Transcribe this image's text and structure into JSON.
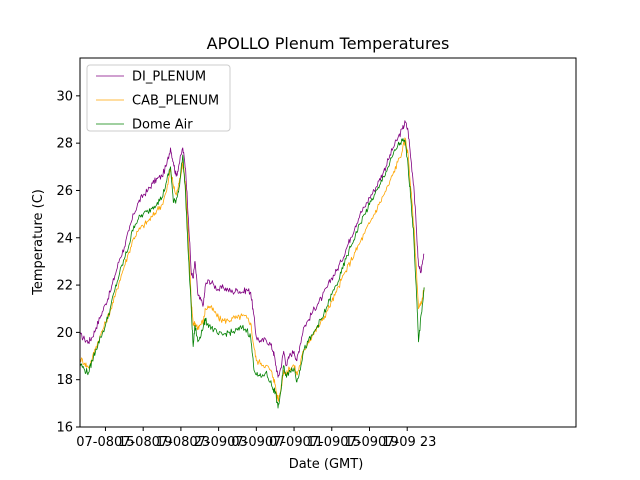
{
  "chart_data": {
    "type": "line",
    "title": "APOLLO Plenum Temperatures",
    "xlabel": "Date (GMT)",
    "ylabel": "Temperature (C)",
    "xlim": [
      -2.7,
      49.9
    ],
    "ylim": [
      16,
      31.6
    ],
    "x_unit": "hours since 07-08 15:00 GMT",
    "yticks": [
      16,
      18,
      20,
      22,
      24,
      26,
      28,
      30
    ],
    "xticks": [
      {
        "value": 0,
        "label": "07-08 15"
      },
      {
        "value": 4,
        "label": "07-08 19"
      },
      {
        "value": 8,
        "label": "07-08 23"
      },
      {
        "value": 12,
        "label": "07-09 03"
      },
      {
        "value": 16,
        "label": "07-09 07"
      },
      {
        "value": 20,
        "label": "07-09 11"
      },
      {
        "value": 24,
        "label": "07-09 15"
      },
      {
        "value": 28,
        "label": "07-09 19"
      },
      {
        "value": 32,
        "label": "07-09 23"
      }
    ],
    "legend_position": "top-left",
    "series": [
      {
        "name": "DI_PLENUM",
        "color": "#800080",
        "points": [
          [
            -2.7,
            19.9
          ],
          [
            -2.2,
            19.7
          ],
          [
            -1.8,
            19.6
          ],
          [
            -1.4,
            19.8
          ],
          [
            -1,
            20.2
          ],
          [
            -0.5,
            20.7
          ],
          [
            0,
            21.2
          ],
          [
            0.5,
            21.7
          ],
          [
            1,
            22.4
          ],
          [
            1.5,
            23.1
          ],
          [
            2,
            23.6
          ],
          [
            2.5,
            24.3
          ],
          [
            3,
            25
          ],
          [
            3.5,
            25.5
          ],
          [
            4,
            25.8
          ],
          [
            4.5,
            26
          ],
          [
            5,
            26.3
          ],
          [
            5.5,
            26.5
          ],
          [
            6,
            26.6
          ],
          [
            6.5,
            27.1
          ],
          [
            6.9,
            27.8
          ],
          [
            7.2,
            27.2
          ],
          [
            7.5,
            26.6
          ],
          [
            7.8,
            27.1
          ],
          [
            8.2,
            27.8
          ],
          [
            8.5,
            26.9
          ],
          [
            8.8,
            24.8
          ],
          [
            9.1,
            22.5
          ],
          [
            9.3,
            22.3
          ],
          [
            9.5,
            23
          ],
          [
            9.8,
            21.6
          ],
          [
            10,
            21.4
          ],
          [
            10.4,
            21.2
          ],
          [
            10.6,
            22
          ],
          [
            11,
            22.2
          ],
          [
            11.5,
            22
          ],
          [
            12,
            21.8
          ],
          [
            12.5,
            21.9
          ],
          [
            13,
            21.8
          ],
          [
            13.5,
            21.7
          ],
          [
            14,
            21.8
          ],
          [
            14.5,
            21.7
          ],
          [
            15,
            21.8
          ],
          [
            15.4,
            21.7
          ],
          [
            15.7,
            20.8
          ],
          [
            16,
            19.8
          ],
          [
            16.5,
            19.6
          ],
          [
            17,
            19.7
          ],
          [
            17.5,
            19.5
          ],
          [
            17.8,
            19.2
          ],
          [
            18,
            18.8
          ],
          [
            18.3,
            18.1
          ],
          [
            18.6,
            18.5
          ],
          [
            18.9,
            19.2
          ],
          [
            19.2,
            18.6
          ],
          [
            19.5,
            19
          ],
          [
            20,
            19.2
          ],
          [
            20.3,
            18.8
          ],
          [
            20.6,
            19.4
          ],
          [
            21,
            20.2
          ],
          [
            21.5,
            20.5
          ],
          [
            22,
            20.9
          ],
          [
            22.5,
            21.2
          ],
          [
            23,
            21.5
          ],
          [
            23.5,
            21.9
          ],
          [
            24,
            22.3
          ],
          [
            24.5,
            22.6
          ],
          [
            25,
            23
          ],
          [
            25.5,
            23.5
          ],
          [
            26,
            24
          ],
          [
            26.5,
            24.5
          ],
          [
            27,
            25
          ],
          [
            27.5,
            25.3
          ],
          [
            28,
            25.7
          ],
          [
            28.5,
            26
          ],
          [
            29,
            26.4
          ],
          [
            29.5,
            26.8
          ],
          [
            30,
            27.3
          ],
          [
            30.5,
            27.8
          ],
          [
            31,
            28.2
          ],
          [
            31.5,
            28.6
          ],
          [
            31.8,
            28.9
          ],
          [
            32.1,
            28.5
          ],
          [
            32.4,
            27.3
          ],
          [
            32.7,
            26.2
          ],
          [
            33,
            24.2
          ],
          [
            33.2,
            22.8
          ],
          [
            33.5,
            22.6
          ],
          [
            33.8,
            23.3
          ]
        ]
      },
      {
        "name": "CAB_PLENUM",
        "color": "#FFA500",
        "points": [
          [
            -2.7,
            18.9
          ],
          [
            -2.2,
            18.7
          ],
          [
            -1.8,
            18.5
          ],
          [
            -1.4,
            18.9
          ],
          [
            -1,
            19.4
          ],
          [
            -0.5,
            19.9
          ],
          [
            0,
            20.4
          ],
          [
            0.5,
            20.9
          ],
          [
            1,
            21.5
          ],
          [
            1.5,
            22.2
          ],
          [
            2,
            22.8
          ],
          [
            2.5,
            23.4
          ],
          [
            3,
            24
          ],
          [
            3.5,
            24.3
          ],
          [
            4,
            24.5
          ],
          [
            4.5,
            24.7
          ],
          [
            5,
            24.9
          ],
          [
            5.5,
            25.2
          ],
          [
            6,
            25.4
          ],
          [
            6.5,
            26
          ],
          [
            6.9,
            26.9
          ],
          [
            7.2,
            26.2
          ],
          [
            7.5,
            25.8
          ],
          [
            7.8,
            26.3
          ],
          [
            8.2,
            27.2
          ],
          [
            8.5,
            26.2
          ],
          [
            8.8,
            24
          ],
          [
            9.1,
            21.3
          ],
          [
            9.3,
            20.3
          ],
          [
            9.5,
            20.4
          ],
          [
            9.8,
            20.2
          ],
          [
            10,
            20.3
          ],
          [
            10.4,
            20.5
          ],
          [
            10.6,
            21
          ],
          [
            11,
            21.1
          ],
          [
            11.5,
            20.9
          ],
          [
            12,
            20.6
          ],
          [
            12.5,
            20.5
          ],
          [
            13,
            20.5
          ],
          [
            13.5,
            20.6
          ],
          [
            14,
            20.6
          ],
          [
            14.5,
            20.7
          ],
          [
            15,
            20.6
          ],
          [
            15.4,
            20.4
          ],
          [
            15.7,
            19.5
          ],
          [
            16,
            18.8
          ],
          [
            16.5,
            18.7
          ],
          [
            17,
            18.6
          ],
          [
            17.5,
            18.4
          ],
          [
            17.8,
            18.1
          ],
          [
            18,
            17.8
          ],
          [
            18.3,
            17.1
          ],
          [
            18.6,
            17.6
          ],
          [
            18.9,
            18.4
          ],
          [
            19.2,
            18.2
          ],
          [
            19.5,
            18.5
          ],
          [
            20,
            18.6
          ],
          [
            20.3,
            18.2
          ],
          [
            20.6,
            18.6
          ],
          [
            21,
            19.2
          ],
          [
            21.5,
            19.6
          ],
          [
            22,
            19.9
          ],
          [
            22.5,
            20.2
          ],
          [
            23,
            20.5
          ],
          [
            23.5,
            20.9
          ],
          [
            24,
            21.3
          ],
          [
            24.5,
            21.7
          ],
          [
            25,
            22.2
          ],
          [
            25.5,
            22.6
          ],
          [
            26,
            23
          ],
          [
            26.5,
            23.4
          ],
          [
            27,
            23.8
          ],
          [
            27.5,
            24.2
          ],
          [
            28,
            24.6
          ],
          [
            28.5,
            25
          ],
          [
            29,
            25.4
          ],
          [
            29.5,
            25.8
          ],
          [
            30,
            26.2
          ],
          [
            30.5,
            26.7
          ],
          [
            31,
            27.2
          ],
          [
            31.5,
            27.7
          ],
          [
            31.8,
            28.2
          ],
          [
            32.1,
            27.5
          ],
          [
            32.4,
            26
          ],
          [
            32.7,
            24.5
          ],
          [
            33,
            22.5
          ],
          [
            33.2,
            21
          ],
          [
            33.5,
            21.2
          ],
          [
            33.8,
            21.9
          ]
        ]
      },
      {
        "name": "Dome Air",
        "color": "#008000",
        "points": [
          [
            -2.7,
            18.7
          ],
          [
            -2.2,
            18.4
          ],
          [
            -1.8,
            18.3
          ],
          [
            -1.4,
            18.8
          ],
          [
            -1,
            19.3
          ],
          [
            -0.5,
            19.8
          ],
          [
            0,
            20.3
          ],
          [
            0.5,
            21
          ],
          [
            1,
            21.8
          ],
          [
            1.5,
            22.5
          ],
          [
            2,
            23.1
          ],
          [
            2.5,
            23.7
          ],
          [
            3,
            24.5
          ],
          [
            3.5,
            24.8
          ],
          [
            4,
            25
          ],
          [
            4.5,
            25.1
          ],
          [
            5,
            25.3
          ],
          [
            5.5,
            25.5
          ],
          [
            6,
            25.7
          ],
          [
            6.5,
            26.4
          ],
          [
            6.9,
            27
          ],
          [
            7.2,
            25.5
          ],
          [
            7.5,
            25.6
          ],
          [
            7.8,
            26.1
          ],
          [
            8.2,
            27.5
          ],
          [
            8.5,
            25.8
          ],
          [
            8.8,
            23.2
          ],
          [
            9.1,
            21
          ],
          [
            9.3,
            19.4
          ],
          [
            9.5,
            20.3
          ],
          [
            9.8,
            19.6
          ],
          [
            10,
            19.8
          ],
          [
            10.4,
            20.3
          ],
          [
            10.6,
            20.5
          ],
          [
            11,
            20.3
          ],
          [
            11.5,
            20.1
          ],
          [
            12,
            19.9
          ],
          [
            12.5,
            19.9
          ],
          [
            13,
            20
          ],
          [
            13.5,
            20
          ],
          [
            14,
            20.1
          ],
          [
            14.5,
            20.2
          ],
          [
            15,
            20.1
          ],
          [
            15.4,
            19.8
          ],
          [
            15.7,
            18.6
          ],
          [
            16,
            18.2
          ],
          [
            16.5,
            18.1
          ],
          [
            17,
            18.3
          ],
          [
            17.5,
            17.9
          ],
          [
            17.8,
            17.6
          ],
          [
            18,
            17.5
          ],
          [
            18.3,
            16.8
          ],
          [
            18.6,
            17.5
          ],
          [
            18.9,
            18.6
          ],
          [
            19.2,
            18.1
          ],
          [
            19.5,
            18.4
          ],
          [
            20,
            18.5
          ],
          [
            20.3,
            17.9
          ],
          [
            20.6,
            18.4
          ],
          [
            21,
            19.2
          ],
          [
            21.5,
            19.6
          ],
          [
            22,
            19.9
          ],
          [
            22.5,
            20.3
          ],
          [
            23,
            20.6
          ],
          [
            23.5,
            21.1
          ],
          [
            24,
            21.6
          ],
          [
            24.5,
            22
          ],
          [
            25,
            22.5
          ],
          [
            25.5,
            23.1
          ],
          [
            26,
            23.6
          ],
          [
            26.5,
            24.1
          ],
          [
            27,
            24.6
          ],
          [
            27.5,
            25
          ],
          [
            28,
            25.4
          ],
          [
            28.5,
            25.8
          ],
          [
            29,
            26.1
          ],
          [
            29.5,
            26.6
          ],
          [
            30,
            27
          ],
          [
            30.5,
            27.5
          ],
          [
            31,
            27.9
          ],
          [
            31.5,
            28.1
          ],
          [
            31.8,
            28
          ],
          [
            32.1,
            27
          ],
          [
            32.4,
            25.6
          ],
          [
            32.7,
            24
          ],
          [
            33,
            21.5
          ],
          [
            33.2,
            19.6
          ],
          [
            33.5,
            20.8
          ],
          [
            33.8,
            21.9
          ]
        ]
      }
    ]
  }
}
